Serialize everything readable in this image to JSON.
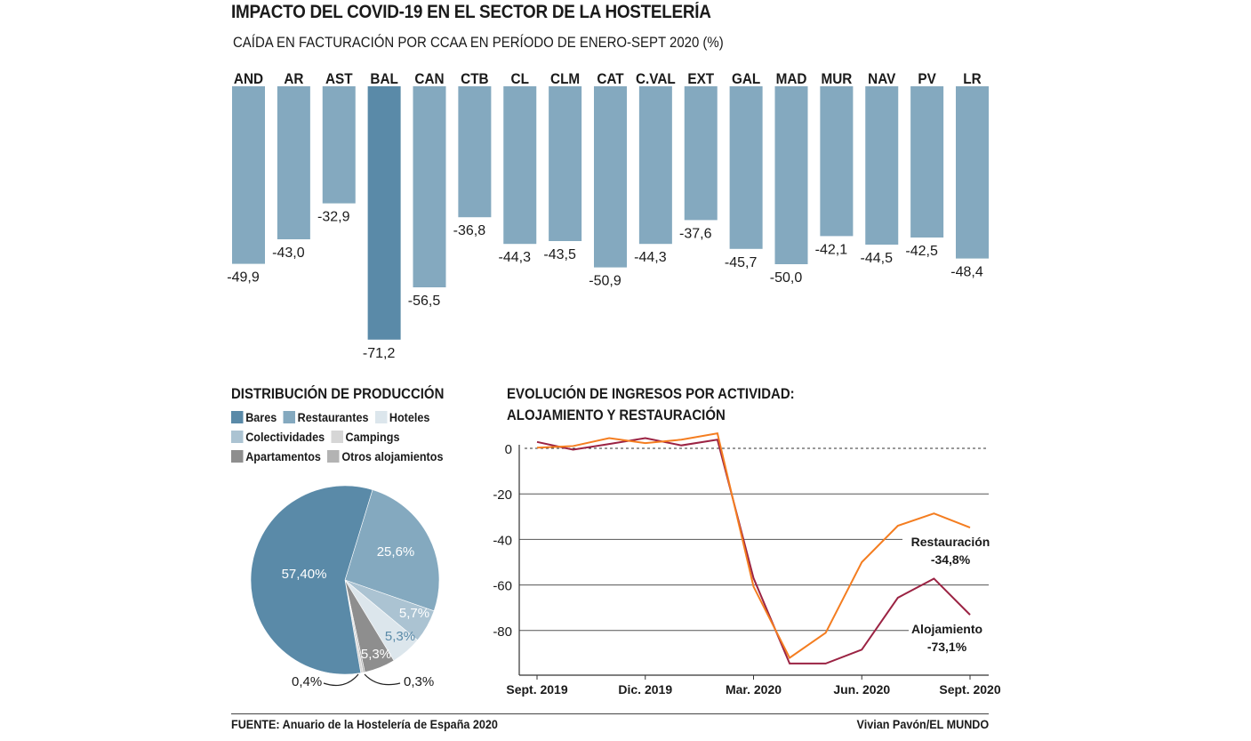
{
  "header": {
    "title": "IMPACTO DEL COVID-19 EN EL SECTOR DE LA HOSTELERÍA",
    "subtitle": "CAÍDA EN FACTURACIÓN POR CCAA EN PERÍODO DE ENERO-SEPT 2020  (%)"
  },
  "footer": {
    "source": "FUENTE: Anuario de la Hostelería de España 2020",
    "credit": "Vivian Pavón/EL MUNDO"
  },
  "chart_data": [
    {
      "type": "bar",
      "title": "CAÍDA EN FACTURACIÓN POR CCAA EN PERÍODO DE ENERO-SEPT 2020  (%)",
      "categories": [
        "AND",
        "AR",
        "AST",
        "BAL",
        "CAN",
        "CTB",
        "CL",
        "CLM",
        "CAT",
        "C.VAL",
        "EXT",
        "GAL",
        "MAD",
        "MUR",
        "NAV",
        "PV",
        "LR"
      ],
      "values": [
        -49.9,
        -43.0,
        -32.9,
        -71.2,
        -56.5,
        -36.8,
        -44.3,
        -43.5,
        -50.9,
        -44.3,
        -37.6,
        -45.7,
        -50.0,
        -42.1,
        -44.5,
        -42.5,
        -48.4
      ],
      "labels": [
        "-49,9",
        "-43,0",
        "-32,9",
        "-71,2",
        "-56,5",
        "-36,8",
        "-44,3",
        "-43,5",
        "-50,9",
        "-44,3",
        "-37,6",
        "-45,7",
        "-50,0",
        "-42,1",
        "-44,5",
        "-42,5",
        "-48,4"
      ],
      "highlight": "BAL",
      "colors": {
        "default": "#84a9bf",
        "highlight": "#5a8aa8"
      }
    },
    {
      "type": "pie",
      "title": "DISTRIBUCIÓN DE PRODUCCIÓN",
      "slices": [
        {
          "name": "Restaurantes",
          "value": 25.6,
          "label": "25,6%",
          "color": "#84a9bf"
        },
        {
          "name": "Colectividades",
          "value": 5.7,
          "label": "5,7%",
          "color": "#abc3d2"
        },
        {
          "name": "Hoteles",
          "value": 5.3,
          "label": "5,3%",
          "color": "#dce6ec"
        },
        {
          "name": "Apartamentos",
          "value": 5.3,
          "label": "5,3%",
          "color": "#8e8e8e"
        },
        {
          "name": "Otros alojamientos",
          "value": 0.3,
          "label": "0,3%",
          "color": "#b3b3b3"
        },
        {
          "name": "Campings",
          "value": 0.4,
          "label": "0,4%",
          "color": "#d6d6d6"
        },
        {
          "name": "Bares",
          "value": 57.4,
          "label": "57,40%",
          "color": "#5a8aa8"
        }
      ],
      "legend": [
        [
          "Bares",
          "Restaurantes",
          "Hoteles"
        ],
        [
          "Colectividades",
          "Campings"
        ],
        [
          "Apartamentos",
          "Otros alojamientos"
        ]
      ]
    },
    {
      "type": "line",
      "title": "EVOLUCIÓN DE INGRESOS POR ACTIVIDAD:",
      "subtitle": "ALOJAMIENTO Y RESTAURACIÓN",
      "x": [
        "Sept. 2019",
        "Oct. 2019",
        "Nov. 2019",
        "Dic. 2019",
        "Ene. 2020",
        "Feb. 2020",
        "Mar. 2020",
        "Abr. 2020",
        "May. 2020",
        "Jun. 2020",
        "Jul. 2020",
        "Ago. 2020",
        "Sept. 2020"
      ],
      "x_tick_labels": [
        "Sept. 2019",
        "Dic. 2019",
        "Mar. 2020",
        "Jun. 2020",
        "Sept. 2020"
      ],
      "y_ticks": [
        0,
        -20,
        -40,
        -60,
        -80
      ],
      "ylim": [
        -100,
        8
      ],
      "grid": true,
      "series": [
        {
          "name": "Restauración",
          "end_label": "-34,8%",
          "color": "#f47d20",
          "values": [
            0.3,
            1.0,
            4.5,
            2.3,
            3.8,
            6.6,
            -60.7,
            -92.0,
            -81.0,
            -50.0,
            -34.0,
            -28.6,
            -34.8
          ]
        },
        {
          "name": "Alojamiento",
          "end_label": "-73,1%",
          "color": "#9b2343",
          "values": [
            2.8,
            -0.6,
            1.9,
            4.5,
            1.3,
            3.8,
            -57.0,
            -94.5,
            -94.5,
            -88.4,
            -65.6,
            -57.2,
            -73.1
          ]
        }
      ]
    }
  ]
}
